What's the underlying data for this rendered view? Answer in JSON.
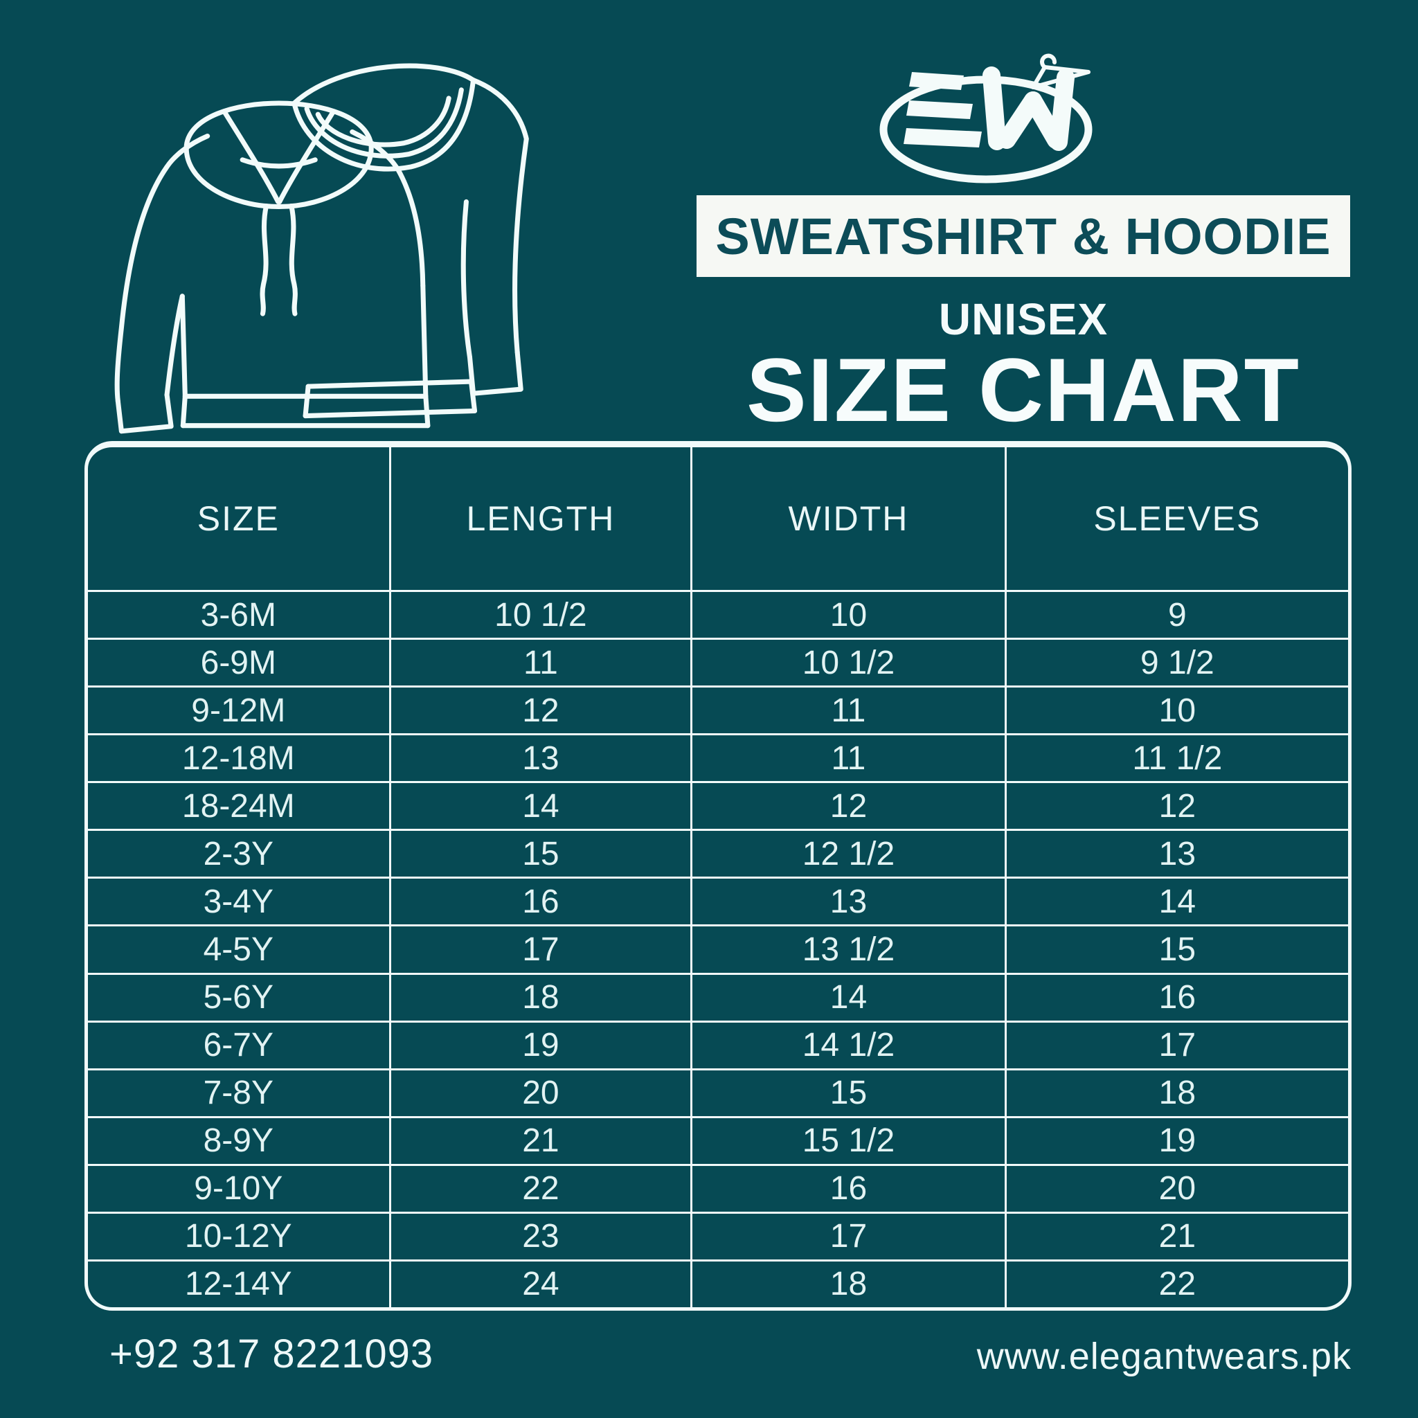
{
  "header": {
    "banner": "SWEATSHIRT & HOODIE",
    "subtitle": "UNISEX",
    "title": "SIZE CHART"
  },
  "logo": {
    "icon": "ew-hanger-ellipse-logo-icon",
    "letters": "EW"
  },
  "illustration": {
    "icon": "hoodie-and-sweatshirt-line-art-icon"
  },
  "table": {
    "headers": [
      "SIZE",
      "LENGTH",
      "WIDTH",
      "SLEEVES"
    ],
    "rows": [
      [
        "3-6M",
        "10 1/2",
        "10",
        "9"
      ],
      [
        "6-9M",
        "11",
        "10 1/2",
        "9 1/2"
      ],
      [
        "9-12M",
        "12",
        "11",
        "10"
      ],
      [
        "12-18M",
        "13",
        "11",
        "11 1/2"
      ],
      [
        "18-24M",
        "14",
        "12",
        "12"
      ],
      [
        "2-3Y",
        "15",
        "12 1/2",
        "13"
      ],
      [
        "3-4Y",
        "16",
        "13",
        "14"
      ],
      [
        "4-5Y",
        "17",
        "13 1/2",
        "15"
      ],
      [
        "5-6Y",
        "18",
        "14",
        "16"
      ],
      [
        "6-7Y",
        "19",
        "14 1/2",
        "17"
      ],
      [
        "7-8Y",
        "20",
        "15",
        "18"
      ],
      [
        "8-9Y",
        "21",
        "15 1/2",
        "19"
      ],
      [
        "9-10Y",
        "22",
        "16",
        "20"
      ],
      [
        "10-12Y",
        "23",
        "17",
        "21"
      ],
      [
        "12-14Y",
        "24",
        "18",
        "22"
      ]
    ]
  },
  "footer": {
    "phone": "+92 317 8221093",
    "website": "www.elegantwears.pk"
  },
  "colors": {
    "background": "#064A54",
    "line": "#F1FAFA",
    "banner_background": "#F6F8F4",
    "banner_text": "#0C4C58"
  }
}
